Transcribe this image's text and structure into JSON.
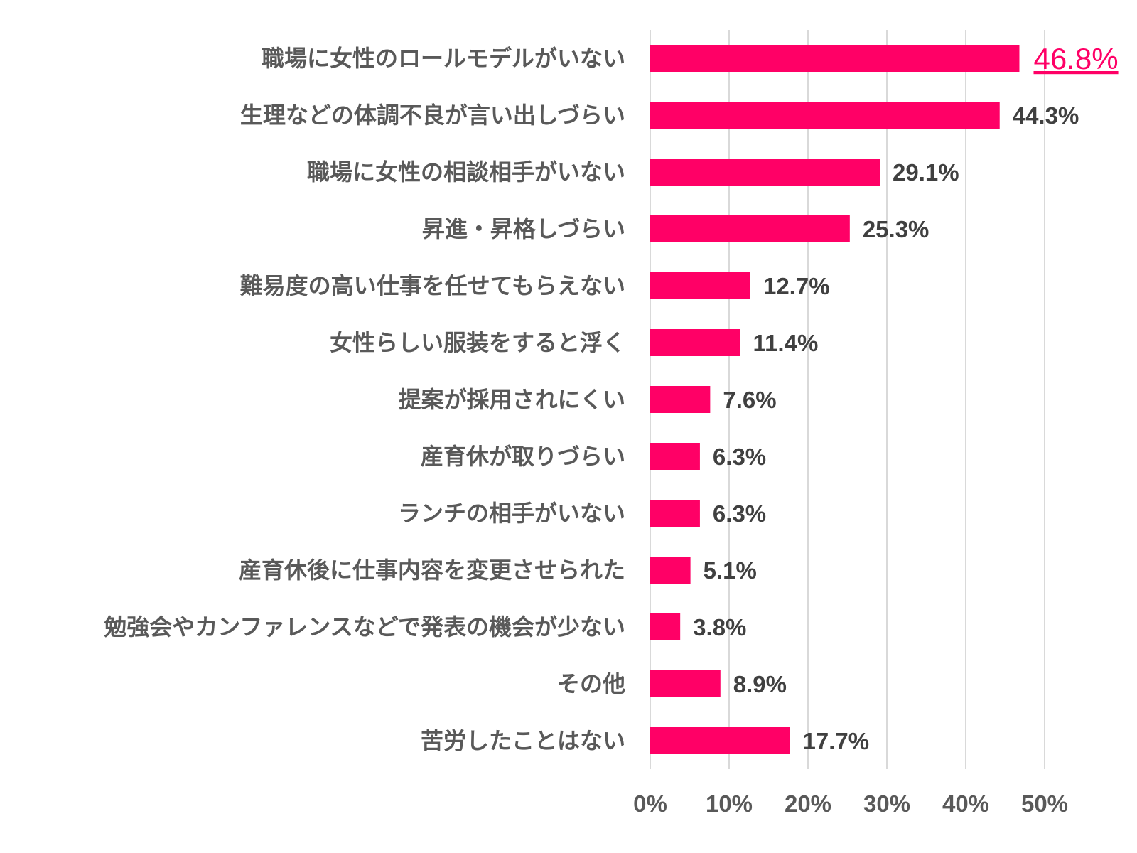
{
  "chart_data": {
    "type": "bar",
    "orientation": "horizontal",
    "categories": [
      "職場に女性のロールモデルがいない",
      "生理などの体調不良が言い出しづらい",
      "職場に女性の相談相手がいない",
      "昇進・昇格しづらい",
      "難易度の高い仕事を任せてもらえない",
      "女性らしい服装をすると浮く",
      "提案が採用されにくい",
      "産育休が取りづらい",
      "ランチの相手がいない",
      "産育休後に仕事内容を変更させられた",
      "勉強会やカンファレンスなどで発表の機会が少ない",
      "その他",
      "苦労したことはない"
    ],
    "values": [
      46.8,
      44.3,
      29.1,
      25.3,
      12.7,
      11.4,
      7.6,
      6.3,
      6.3,
      5.1,
      3.8,
      8.9,
      17.7
    ],
    "data_labels": [
      "46.8%",
      "44.3%",
      "29.1%",
      "25.3%",
      "12.7%",
      "11.4%",
      "7.6%",
      "6.3%",
      "6.3%",
      "5.1%",
      "3.8%",
      "8.9%",
      "17.7%"
    ],
    "highlighted_index": 0,
    "xlim": [
      0,
      50
    ],
    "x_ticks": [
      "0%",
      "10%",
      "20%",
      "30%",
      "40%",
      "50%"
    ],
    "grid": "vertical",
    "title": "",
    "xlabel": "",
    "ylabel": "",
    "colors": {
      "bar": "#ff0066",
      "highlight_label": "#ff0066",
      "text": "#595959",
      "grid": "#d9d9d9"
    }
  }
}
